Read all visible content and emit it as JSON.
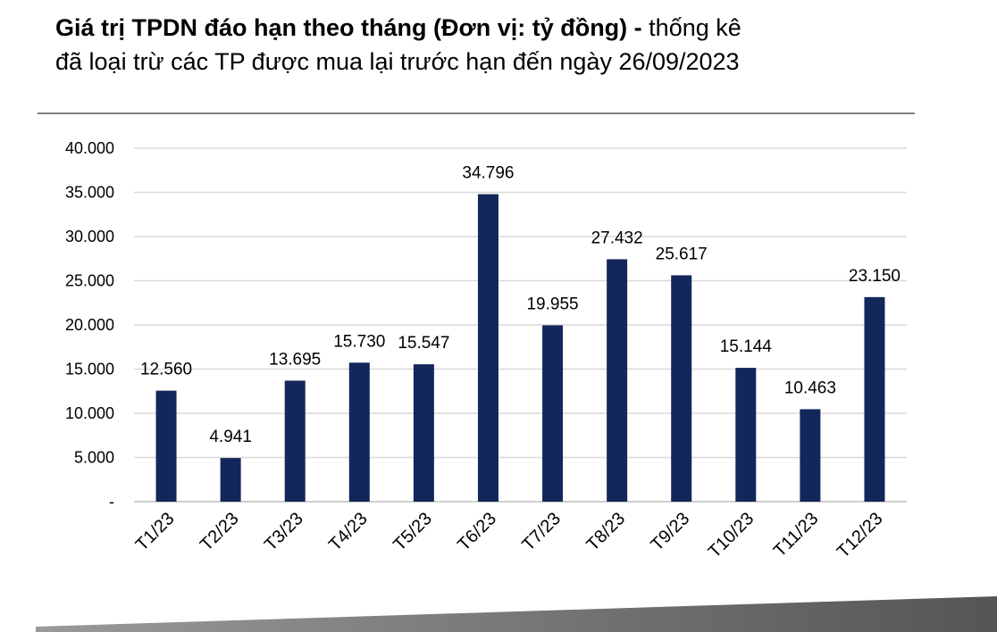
{
  "title": {
    "bold": "Giá trị TPDN đáo hạn theo tháng (Đơn vị: tỷ đồng) -",
    "normal_1": " thống kê",
    "normal_2": "đã loại trừ các TP được mua lại trước hạn đến ngày 26/09/2023"
  },
  "colors": {
    "bar": "#14275a",
    "grid": "#d9d9d9",
    "rule": "#7f7f7f"
  },
  "chart_data": {
    "type": "bar",
    "title": "Giá trị TPDN đáo hạn theo tháng (Đơn vị: tỷ đồng)",
    "categories": [
      "T1/23",
      "T2/23",
      "T3/23",
      "T4/23",
      "T5/23",
      "T6/23",
      "T7/23",
      "T8/23",
      "T9/23",
      "T10/23",
      "T11/23",
      "T12/23"
    ],
    "values": [
      12560,
      4941,
      13695,
      15730,
      15547,
      34796,
      19955,
      27432,
      25617,
      15144,
      10463,
      23150
    ],
    "data_labels": [
      "12.560",
      "4.941",
      "13.695",
      "15.730",
      "15.547",
      "34.796",
      "19.955",
      "27.432",
      "25.617",
      "15.144",
      "10.463",
      "23.150"
    ],
    "y_ticks": [
      "-",
      "5.000",
      "10.000",
      "15.000",
      "20.000",
      "25.000",
      "30.000",
      "35.000",
      "40.000"
    ],
    "ylim": [
      0,
      40000
    ],
    "xlabel": "",
    "ylabel": "",
    "grid": true,
    "legend": "none"
  }
}
